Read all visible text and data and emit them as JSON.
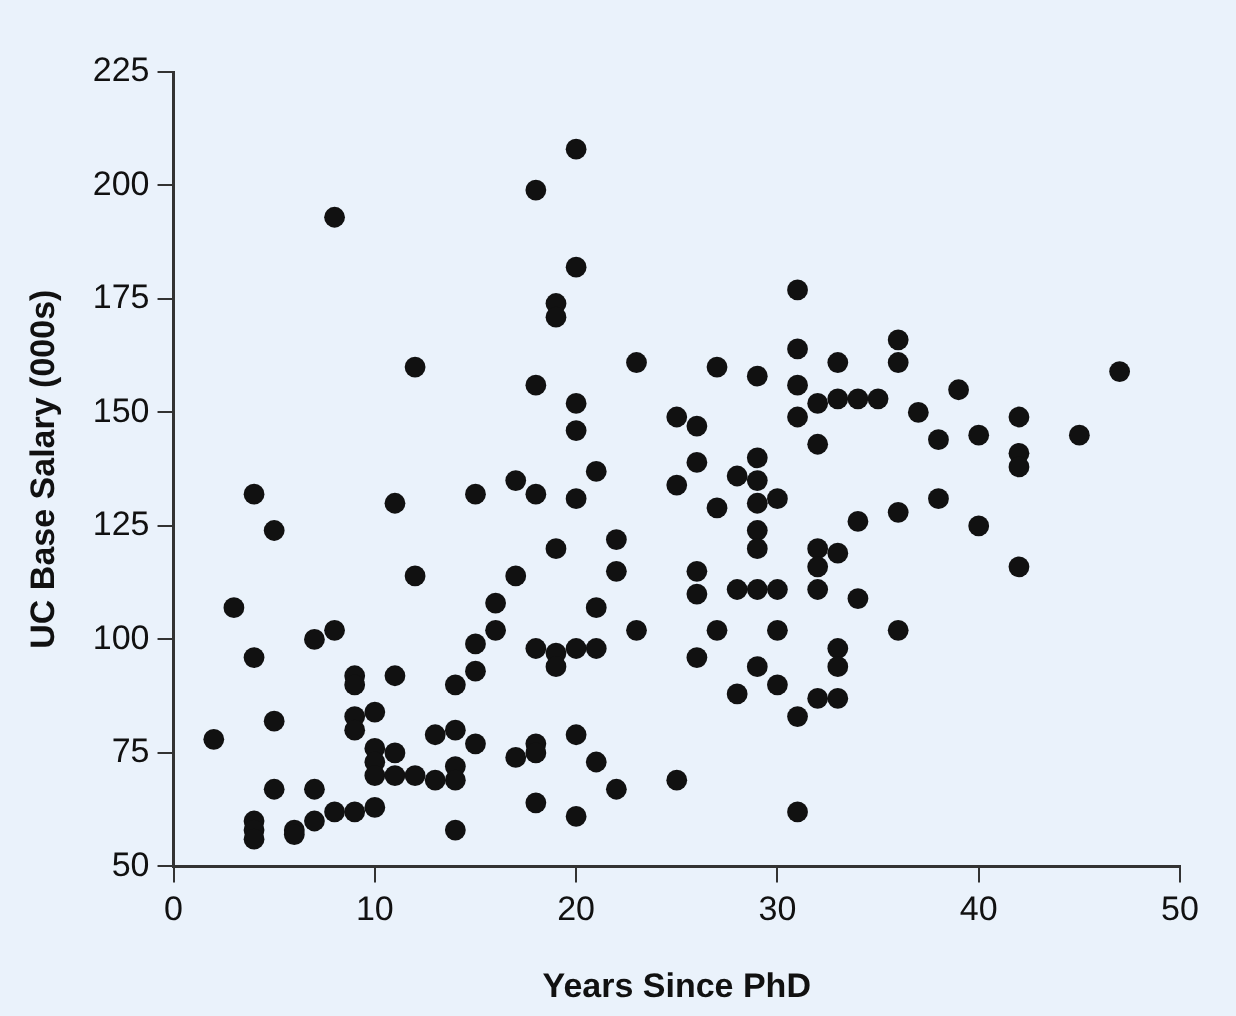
{
  "chart_data": {
    "type": "scatter",
    "xlabel": "Years Since PhD",
    "ylabel": "UC Base Salary (000s)",
    "xlim": [
      0,
      50
    ],
    "xticks": [
      0,
      10,
      20,
      30,
      40,
      50
    ],
    "ylim": [
      50,
      225
    ],
    "yticks": [
      50,
      75,
      100,
      125,
      150,
      175,
      200,
      225
    ],
    "grid": false,
    "legend": false,
    "marker": "circle",
    "series": [
      {
        "color": "#111111",
        "x": [
          2,
          3,
          4,
          4,
          4,
          4,
          4,
          5,
          5,
          5,
          6,
          6,
          7,
          7,
          7,
          8,
          8,
          8,
          9,
          9,
          9,
          9,
          9,
          10,
          10,
          10,
          10,
          10,
          11,
          11,
          11,
          11,
          12,
          12,
          12,
          13,
          13,
          14,
          14,
          14,
          14,
          14,
          15,
          15,
          15,
          15,
          16,
          16,
          17,
          17,
          17,
          18,
          18,
          18,
          18,
          18,
          18,
          18,
          19,
          19,
          19,
          19,
          19,
          20,
          20,
          20,
          20,
          20,
          20,
          20,
          20,
          21,
          21,
          21,
          21,
          22,
          22,
          22,
          23,
          23,
          25,
          25,
          25,
          26,
          26,
          26,
          26,
          26,
          27,
          27,
          27,
          28,
          28,
          28,
          29,
          29,
          29,
          29,
          29,
          29,
          29,
          29,
          30,
          30,
          30,
          30,
          31,
          31,
          31,
          31,
          31,
          31,
          32,
          32,
          32,
          32,
          32,
          32,
          33,
          33,
          33,
          33,
          33,
          33,
          34,
          34,
          34,
          35,
          36,
          36,
          36,
          36,
          37,
          38,
          38,
          39,
          40,
          40,
          42,
          42,
          42,
          42,
          45,
          47
        ],
        "values": [
          78,
          107,
          132,
          96,
          60,
          58,
          56,
          124,
          82,
          67,
          58,
          57,
          100,
          67,
          60,
          193,
          102,
          62,
          92,
          90,
          83,
          80,
          62,
          84,
          76,
          73,
          70,
          63,
          130,
          92,
          75,
          70,
          160,
          114,
          70,
          79,
          69,
          90,
          80,
          72,
          69,
          58,
          132,
          99,
          93,
          77,
          108,
          102,
          135,
          114,
          74,
          199,
          156,
          132,
          98,
          77,
          75,
          64,
          174,
          171,
          120,
          97,
          94,
          208,
          182,
          152,
          146,
          131,
          98,
          79,
          61,
          137,
          107,
          98,
          73,
          122,
          115,
          67,
          161,
          102,
          149,
          134,
          69,
          147,
          139,
          115,
          110,
          96,
          160,
          129,
          102,
          136,
          111,
          88,
          158,
          140,
          135,
          130,
          124,
          120,
          111,
          94,
          131,
          111,
          102,
          90,
          177,
          164,
          156,
          149,
          83,
          62,
          152,
          143,
          120,
          116,
          111,
          87,
          161,
          153,
          119,
          98,
          94,
          87,
          153,
          126,
          109,
          153,
          166,
          161,
          128,
          102,
          150,
          144,
          131,
          155,
          145,
          125,
          149,
          141,
          138,
          116,
          145,
          159
        ]
      }
    ]
  }
}
